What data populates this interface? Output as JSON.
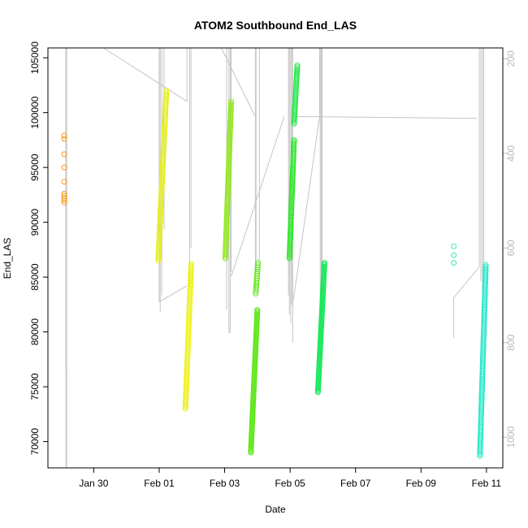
{
  "chart_data": {
    "type": "scatter",
    "title": "ATOM2 Southbound End_LAS",
    "xlabel": "Date",
    "ylabel": "End_LAS",
    "x_ticks": [
      "Jan 30",
      "Feb 01",
      "Feb 03",
      "Feb 05",
      "Feb 07",
      "Feb 09",
      "Feb 11"
    ],
    "x_tick_days": [
      30,
      32,
      34,
      36,
      38,
      40,
      42
    ],
    "xlim_days": [
      28.6,
      42.5
    ],
    "y_ticks": [
      70000,
      75000,
      80000,
      85000,
      90000,
      95000,
      100000,
      105000
    ],
    "y_tick_labels": [
      "70000",
      "75000",
      "80000",
      "85000",
      "90000",
      "95000",
      "100000",
      "105000"
    ],
    "ylim": [
      67600,
      105900
    ],
    "y2_ticks": [
      200,
      400,
      600,
      800,
      1000
    ],
    "y2_tick_labels": [
      "200",
      "400",
      "600",
      "800",
      "1000"
    ],
    "y2lim": [
      1065,
      177
    ],
    "grid": false,
    "series": [
      {
        "color": "#f39a1c",
        "runs": [
          {
            "x0": 29.1,
            "x1": 29.1,
            "ys": [
              91800,
              92000,
              92200,
              92400,
              92600,
              93700,
              95000,
              96200,
              97600,
              97900
            ]
          }
        ]
      },
      {
        "color": "#e4ef1a",
        "runs": [
          {
            "x0": 31.97,
            "x1": 32.22,
            "y0": 86500,
            "y1": 102000,
            "n": 110
          }
        ]
      },
      {
        "color": "#eef21b",
        "runs": [
          {
            "x0": 32.8,
            "x1": 32.98,
            "y0": 73000,
            "y1": 86200,
            "n": 100
          }
        ]
      },
      {
        "color": "#8fe817",
        "runs": [
          {
            "x0": 34.02,
            "x1": 34.2,
            "y0": 86700,
            "y1": 101000,
            "n": 90
          }
        ]
      },
      {
        "color": "#5ee81a",
        "runs": [
          {
            "x0": 34.8,
            "x1": 35.0,
            "y0": 69000,
            "y1": 82000,
            "n": 110
          },
          {
            "x0": 34.95,
            "x1": 35.02,
            "y0": 83500,
            "y1": 86300,
            "n": 15
          }
        ]
      },
      {
        "color": "#2ee82a",
        "runs": [
          {
            "x0": 35.98,
            "x1": 36.12,
            "y0": 86700,
            "y1": 97500,
            "n": 80
          }
        ]
      },
      {
        "color": "#23e847",
        "runs": [
          {
            "x0": 36.12,
            "x1": 36.22,
            "y0": 99000,
            "y1": 104300,
            "n": 35
          }
        ]
      },
      {
        "color": "#17e85a",
        "runs": [
          {
            "x0": 36.85,
            "x1": 37.05,
            "y0": 74500,
            "y1": 86300,
            "n": 100
          }
        ]
      },
      {
        "color": "#36eda4",
        "runs": [
          {
            "x0": 41.0,
            "x1": 41.0,
            "ys": [
              86300,
              87000,
              87800
            ]
          }
        ]
      },
      {
        "color": "#27e8c9",
        "runs": [
          {
            "x0": 41.8,
            "x1": 41.98,
            "y0": 68700,
            "y1": 86100,
            "n": 120
          }
        ]
      }
    ],
    "gray_lines": [
      [
        [
          29.15,
          1065
        ],
        [
          29.15,
          177
        ]
      ],
      [
        [
          29.17,
          1065
        ],
        [
          29.17,
          177
        ]
      ],
      [
        [
          29.15,
          860
        ],
        [
          29.15,
          177
        ]
      ],
      [
        [
          29.17,
          845
        ],
        [
          29.17,
          177
        ]
      ],
      [
        [
          29.22,
          177
        ],
        [
          29.22,
          177
        ]
      ],
      [
        [
          30.3,
          177
        ],
        [
          32.85,
          290
        ]
      ],
      [
        [
          32.85,
          290
        ],
        [
          32.85,
          177
        ]
      ],
      [
        [
          32.0,
          714
        ],
        [
          32.85,
          680
        ]
      ],
      [
        [
          32.0,
          714
        ],
        [
          32.0,
          177
        ]
      ],
      [
        [
          32.03,
          735
        ],
        [
          32.03,
          177
        ]
      ],
      [
        [
          32.08,
          700
        ],
        [
          32.08,
          177
        ]
      ],
      [
        [
          32.15,
          177
        ],
        [
          32.15,
          560
        ]
      ],
      [
        [
          32.93,
          680
        ],
        [
          32.93,
          177
        ]
      ],
      [
        [
          32.97,
          177
        ],
        [
          32.97,
          600
        ]
      ],
      [
        [
          33.9,
          177
        ],
        [
          34.92,
          320
        ]
      ],
      [
        [
          34.06,
          177
        ],
        [
          34.06,
          730
        ]
      ],
      [
        [
          34.13,
          177
        ],
        [
          34.13,
          780
        ]
      ],
      [
        [
          34.17,
          177
        ],
        [
          34.17,
          780
        ]
      ],
      [
        [
          34.2,
          177
        ],
        [
          34.2,
          650
        ]
      ],
      [
        [
          34.2,
          660
        ],
        [
          35.82,
          322
        ]
      ],
      [
        [
          34.94,
          177
        ],
        [
          34.94,
          690
        ]
      ],
      [
        [
          34.96,
          177
        ],
        [
          34.96,
          650
        ]
      ],
      [
        [
          35.06,
          177
        ],
        [
          35.06,
          630
        ]
      ],
      [
        [
          35.95,
          177
        ],
        [
          35.95,
          700
        ]
      ],
      [
        [
          35.98,
          177
        ],
        [
          35.98,
          740
        ]
      ],
      [
        [
          36.02,
          177
        ],
        [
          36.02,
          760
        ]
      ],
      [
        [
          36.05,
          177
        ],
        [
          36.05,
          720
        ]
      ],
      [
        [
          36.08,
          177
        ],
        [
          36.08,
          800
        ]
      ],
      [
        [
          36.1,
          710
        ],
        [
          36.9,
          322
        ]
      ],
      [
        [
          36.9,
          322
        ],
        [
          36.9,
          177
        ]
      ],
      [
        [
          36.92,
          177
        ],
        [
          36.92,
          830
        ]
      ],
      [
        [
          36.95,
          177
        ],
        [
          36.95,
          790
        ]
      ],
      [
        [
          36.98,
          177
        ],
        [
          36.98,
          770
        ]
      ],
      [
        [
          36.15,
          322
        ],
        [
          41.7,
          326
        ]
      ],
      [
        [
          41.0,
          790
        ],
        [
          41.0,
          705
        ]
      ],
      [
        [
          41.0,
          705
        ],
        [
          41.78,
          640
        ]
      ],
      [
        [
          41.78,
          640
        ],
        [
          41.78,
          177
        ]
      ],
      [
        [
          41.83,
          177
        ],
        [
          41.83,
          670
        ]
      ],
      [
        [
          41.88,
          177
        ],
        [
          41.88,
          700
        ]
      ],
      [
        [
          41.92,
          177
        ],
        [
          41.92,
          660
        ]
      ]
    ]
  }
}
